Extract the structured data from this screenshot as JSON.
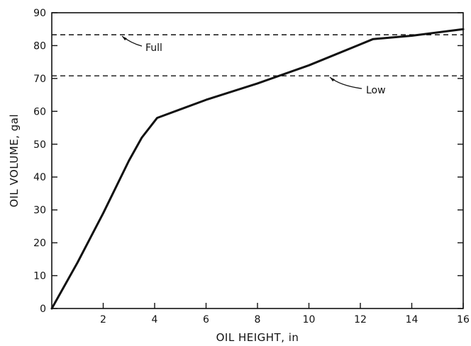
{
  "chart_data": {
    "type": "line",
    "xlabel": "OIL HEIGHT, in",
    "ylabel": "OIL VOLUME, gal",
    "xlim": [
      0,
      16
    ],
    "ylim": [
      0,
      90
    ],
    "xticks": [
      2,
      4,
      6,
      8,
      10,
      12,
      14,
      16
    ],
    "yticks": [
      0,
      10,
      20,
      30,
      40,
      50,
      60,
      70,
      80,
      90
    ],
    "grid": false,
    "series": [
      {
        "x": [
          0,
          1.0,
          2.0,
          3.0,
          3.5,
          4.1,
          6.0,
          8.0,
          10.0,
          12.5,
          14.0,
          16.0
        ],
        "y": [
          0,
          14,
          29,
          45,
          52,
          58,
          63.5,
          68.5,
          74,
          82,
          83,
          85
        ]
      }
    ],
    "reference_lines": [
      {
        "label": "Full",
        "y": 83.3
      },
      {
        "label": "Low",
        "y": 70.8
      }
    ]
  }
}
